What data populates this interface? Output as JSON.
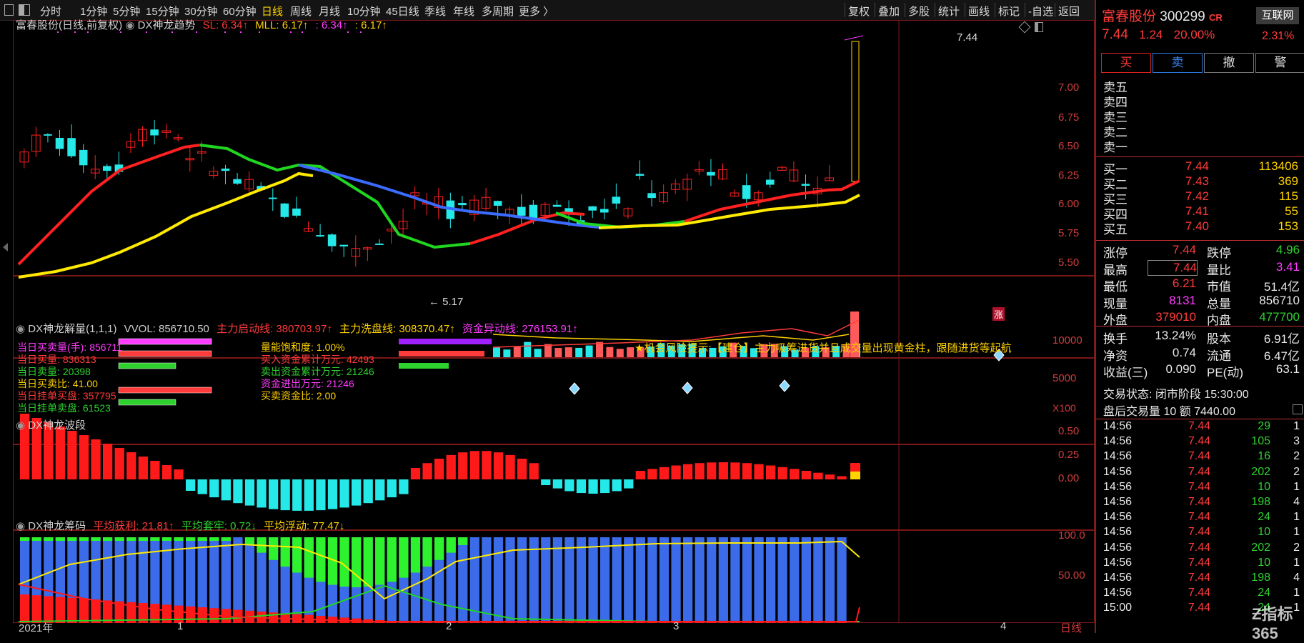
{
  "toolbar": {
    "periods": [
      "分时",
      "1分钟",
      "5分钟",
      "15分钟",
      "30分钟",
      "60分钟",
      "日线",
      "周线",
      "月线",
      "10分钟",
      "45日线",
      "季线",
      "年线",
      "多周期",
      "更多 〉"
    ],
    "active": "日线",
    "tools": [
      "复权",
      "叠加",
      "多股",
      "统计",
      "画线",
      "标记",
      "-自选",
      "返回"
    ]
  },
  "main_pane": {
    "stock": "富春股份(日线,前复权)",
    "indicator": "DX神龙趋势",
    "sl": "SL: 6.34↑",
    "mll": "MLL: 6.17↑",
    "v1": ": 6.34↑",
    "v2": ": 6.17↑",
    "axis": [
      "7.00",
      "6.75",
      "6.50",
      "6.25",
      "6.00",
      "5.75",
      "5.50"
    ],
    "high_label": "7.44",
    "low_label": "← 5.17",
    "limit_badge": "涨"
  },
  "pane2": {
    "title": "DX神龙解量(1,1,1)",
    "vvol": "VVOL: 856710.50",
    "main_start": "主力启动线: 380703.97↑",
    "main_wash": "主力洗盘线: 308370.47↑",
    "fund_line": "资金异动线: 276153.91↑",
    "stats_left": [
      {
        "label": "当日买卖量(手):",
        "value": "856711",
        "color": "#ff3bff"
      },
      {
        "label": "当日买量:",
        "value": "836313",
        "color": "#ff3b3b"
      },
      {
        "label": "当日卖量:",
        "value": "20398",
        "color": "#2fd12f"
      },
      {
        "label": "当日买卖比:",
        "value": "41.00",
        "color": "#ffd200"
      },
      {
        "label": "当日挂单买盘:",
        "value": "357795",
        "color": "#ff3b3b"
      },
      {
        "label": "当日挂单卖盘:",
        "value": "61523",
        "color": "#2fd12f"
      }
    ],
    "stats_right": [
      {
        "label": "量能饱和度:",
        "value": "1.00%",
        "color": "#ffd200"
      },
      {
        "label": "买入资金累计万元:",
        "value": "42493",
        "color": "#ff3b3b"
      },
      {
        "label": "卖出资金累计万元:",
        "value": "21246",
        "color": "#2fd12f"
      },
      {
        "label": "资金进出万元:",
        "value": "21246",
        "color": "#ff3bff"
      },
      {
        "label": "买卖资金比:",
        "value": "2.00",
        "color": "#ffd200"
      }
    ],
    "hint": "★机会风险提示:【建仓】主力吸筹进货并且成交量出现黄金柱，跟随进货等起航",
    "axis": [
      "10000",
      "5000"
    ],
    "unit": "X100"
  },
  "pane3": {
    "title": "DX神龙波段",
    "axis": [
      "0.50",
      "0.25",
      "0.00"
    ]
  },
  "pane4": {
    "title": "DX神龙筹码",
    "avg_profit": "平均获利: 21.81↑",
    "avg_trap": "平均套牢: 0.72↓",
    "avg_float": "平均浮动: 77.47↓",
    "axis": [
      "100.0",
      "50.00"
    ]
  },
  "xaxis": {
    "labels": [
      "2021年",
      "1",
      "2",
      "3",
      "4"
    ],
    "period": "日线"
  },
  "quote": {
    "name": "富春股份",
    "code": "300299",
    "badge": "CR",
    "sector": "互联网",
    "sector_pct": "2.31%",
    "price": "7.44",
    "change": "1.24",
    "pct": "20.00%",
    "buttons": [
      "买",
      "卖",
      "撤",
      "警"
    ],
    "asks": [
      "卖五",
      "卖四",
      "卖三",
      "卖二",
      "卖一"
    ],
    "bids": [
      {
        "label": "买一",
        "price": "7.44",
        "vol": "113406"
      },
      {
        "label": "买二",
        "price": "7.43",
        "vol": "369"
      },
      {
        "label": "买三",
        "price": "7.42",
        "vol": "115"
      },
      {
        "label": "买四",
        "price": "7.41",
        "vol": "55"
      },
      {
        "label": "买五",
        "price": "7.40",
        "vol": "153"
      }
    ],
    "stats": [
      {
        "l1": "涨停",
        "v1": "7.44",
        "c1": "#ff3b3b",
        "l2": "跌停",
        "v2": "4.96",
        "c2": "#2fd12f"
      },
      {
        "l1": "最高",
        "v1": "7.44",
        "c1": "#ff3b3b",
        "l2": "量比",
        "v2": "3.41",
        "c2": "#ff3bff"
      },
      {
        "l1": "最低",
        "v1": "6.21",
        "c1": "#ff3b3b",
        "l2": "市值",
        "v2": "51.4亿",
        "c2": "#e8e8e8"
      },
      {
        "l1": "现量",
        "v1": "8131",
        "c1": "#ff3bff",
        "l2": "总量",
        "v2": "856710",
        "c2": "#e8e8e8"
      },
      {
        "l1": "外盘",
        "v1": "379010",
        "c1": "#ff3b3b",
        "l2": "内盘",
        "v2": "477700",
        "c2": "#2fd12f"
      }
    ],
    "stats2": [
      {
        "l1": "换手",
        "v1": "13.24%",
        "l2": "股本",
        "v2": "6.91亿"
      },
      {
        "l1": "净资",
        "v1": "0.74",
        "l2": "流通",
        "v2": "6.47亿"
      },
      {
        "l1": "收益(三)",
        "v1": "0.090",
        "l2": "PE(动)",
        "v2": "63.1"
      }
    ],
    "status": "交易状态: 闭市阶段 15:30:00",
    "after_hours": "盘后交易量 10 额 7440.00",
    "ticks": [
      {
        "t": "14:56",
        "p": "7.44",
        "v": "29",
        "n": "1"
      },
      {
        "t": "14:56",
        "p": "7.44",
        "v": "105",
        "n": "3"
      },
      {
        "t": "14:56",
        "p": "7.44",
        "v": "16",
        "n": "2"
      },
      {
        "t": "14:56",
        "p": "7.44",
        "v": "202",
        "n": "2"
      },
      {
        "t": "14:56",
        "p": "7.44",
        "v": "10",
        "n": "1"
      },
      {
        "t": "14:56",
        "p": "7.44",
        "v": "198",
        "n": "4"
      },
      {
        "t": "14:56",
        "p": "7.44",
        "v": "24",
        "n": "1"
      },
      {
        "t": "14:56",
        "p": "7.44",
        "v": "10",
        "n": "1"
      },
      {
        "t": "14:56",
        "p": "7.44",
        "v": "202",
        "n": "2"
      },
      {
        "t": "14:56",
        "p": "7.44",
        "v": "10",
        "n": "1"
      },
      {
        "t": "14:56",
        "p": "7.44",
        "v": "198",
        "n": "4"
      },
      {
        "t": "14:56",
        "p": "7.44",
        "v": "24",
        "n": "1"
      },
      {
        "t": "15:00",
        "p": "7.44",
        "v": "24",
        "n": "1"
      }
    ],
    "watermark": "指标365"
  },
  "colors": {
    "up": "#ff2020",
    "down": "#25e8e8",
    "border": "#8b1a1a",
    "active": "#ffd200"
  }
}
